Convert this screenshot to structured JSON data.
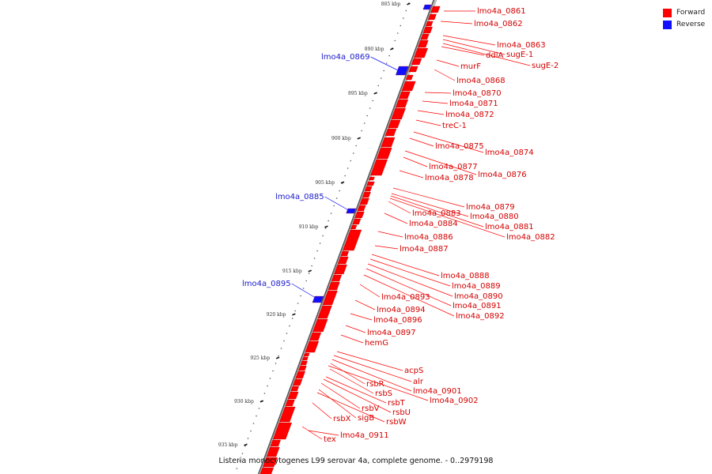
{
  "legend": {
    "forward_label": "Forward",
    "reverse_label": "Reverse",
    "forward_color": "#ff0000",
    "reverse_color": "#1010ff"
  },
  "caption": "Listeria monocytogenes L99 serovar 4a, complete genome. - 0..2979198",
  "ticks": [
    "885 kbp",
    "890 kbp",
    "895 kbp",
    "900 kbp",
    "905 kbp",
    "910 kbp",
    "915 kbp",
    "920 kbp",
    "925 kbp",
    "930 kbp",
    "935 kbp"
  ],
  "genes": [
    {
      "name": "lmo4a_0861",
      "strand": "forward"
    },
    {
      "name": "lmo4a_0862",
      "strand": "forward"
    },
    {
      "name": "lmo4a_0863",
      "strand": "forward"
    },
    {
      "name": "sugE-1",
      "strand": "forward"
    },
    {
      "name": "ddlA",
      "strand": "forward"
    },
    {
      "name": "sugE-2",
      "strand": "forward"
    },
    {
      "name": "murF",
      "strand": "forward"
    },
    {
      "name": "lmo4a_0868",
      "strand": "forward"
    },
    {
      "name": "lmo4a_0869",
      "strand": "reverse"
    },
    {
      "name": "lmo4a_0870",
      "strand": "forward"
    },
    {
      "name": "lmo4a_0871",
      "strand": "forward"
    },
    {
      "name": "lmo4a_0872",
      "strand": "forward"
    },
    {
      "name": "treC-1",
      "strand": "forward"
    },
    {
      "name": "lmo4a_0875",
      "strand": "forward"
    },
    {
      "name": "lmo4a_0874",
      "strand": "forward"
    },
    {
      "name": "lmo4a_0877",
      "strand": "forward"
    },
    {
      "name": "lmo4a_0876",
      "strand": "forward"
    },
    {
      "name": "lmo4a_0878",
      "strand": "forward"
    },
    {
      "name": "lmo4a_0885",
      "strand": "reverse"
    },
    {
      "name": "lmo4a_0879",
      "strand": "forward"
    },
    {
      "name": "lmo4a_0883",
      "strand": "forward"
    },
    {
      "name": "lmo4a_0880",
      "strand": "forward"
    },
    {
      "name": "lmo4a_0884",
      "strand": "forward"
    },
    {
      "name": "lmo4a_0881",
      "strand": "forward"
    },
    {
      "name": "lmo4a_0882",
      "strand": "forward"
    },
    {
      "name": "lmo4a_0886",
      "strand": "forward"
    },
    {
      "name": "lmo4a_0887",
      "strand": "forward"
    },
    {
      "name": "lmo4a_0888",
      "strand": "forward"
    },
    {
      "name": "lmo4a_0895",
      "strand": "reverse"
    },
    {
      "name": "lmo4a_0889",
      "strand": "forward"
    },
    {
      "name": "lmo4a_0890",
      "strand": "forward"
    },
    {
      "name": "lmo4a_0893",
      "strand": "forward"
    },
    {
      "name": "lmo4a_0891",
      "strand": "forward"
    },
    {
      "name": "lmo4a_0894",
      "strand": "forward"
    },
    {
      "name": "lmo4a_0892",
      "strand": "forward"
    },
    {
      "name": "lmo4a_0896",
      "strand": "forward"
    },
    {
      "name": "lmo4a_0897",
      "strand": "forward"
    },
    {
      "name": "hemG",
      "strand": "forward"
    },
    {
      "name": "acpS",
      "strand": "forward"
    },
    {
      "name": "alr",
      "strand": "forward"
    },
    {
      "name": "rsbR",
      "strand": "forward"
    },
    {
      "name": "lmo4a_0901",
      "strand": "forward"
    },
    {
      "name": "rsbS",
      "strand": "forward"
    },
    {
      "name": "lmo4a_0902",
      "strand": "forward"
    },
    {
      "name": "rsbT",
      "strand": "forward"
    },
    {
      "name": "rsbV",
      "strand": "forward"
    },
    {
      "name": "rsbU",
      "strand": "forward"
    },
    {
      "name": "sigB",
      "strand": "forward"
    },
    {
      "name": "rsbX",
      "strand": "forward"
    },
    {
      "name": "rsbW",
      "strand": "forward"
    },
    {
      "name": "lmo4a_0911",
      "strand": "forward"
    },
    {
      "name": "tex",
      "strand": "forward"
    }
  ]
}
